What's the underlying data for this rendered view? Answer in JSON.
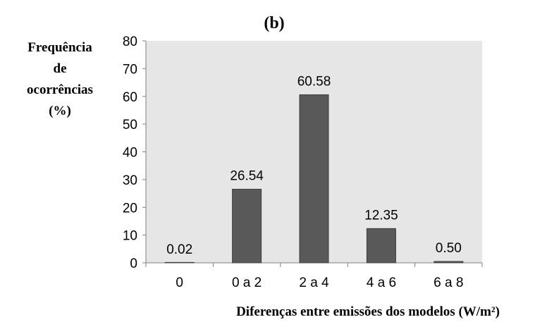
{
  "chart_data": {
    "type": "bar",
    "title": "(b)",
    "ylabel_lines": [
      "Frequência",
      "de",
      "ocorrências",
      "(%)"
    ],
    "xlabel": "Diferenças entre emissões dos modelos (W/m²)",
    "categories": [
      "0",
      "0 a 2",
      "2 a 4",
      "4 a 6",
      "6 a 8"
    ],
    "values": [
      0.02,
      26.54,
      60.58,
      12.35,
      0.5
    ],
    "value_labels": [
      "0.02",
      "26.54",
      "60.58",
      "12.35",
      "0.50"
    ],
    "yticks": [
      "0",
      "10",
      "20",
      "30",
      "40",
      "50",
      "60",
      "70",
      "80"
    ],
    "ylim": [
      0,
      80
    ],
    "grid": false,
    "legend": "none",
    "colors": {
      "bar": "#595959",
      "bar_stroke": "#404040",
      "plot_background": "#e6e6e6",
      "axis": "#808080"
    }
  }
}
